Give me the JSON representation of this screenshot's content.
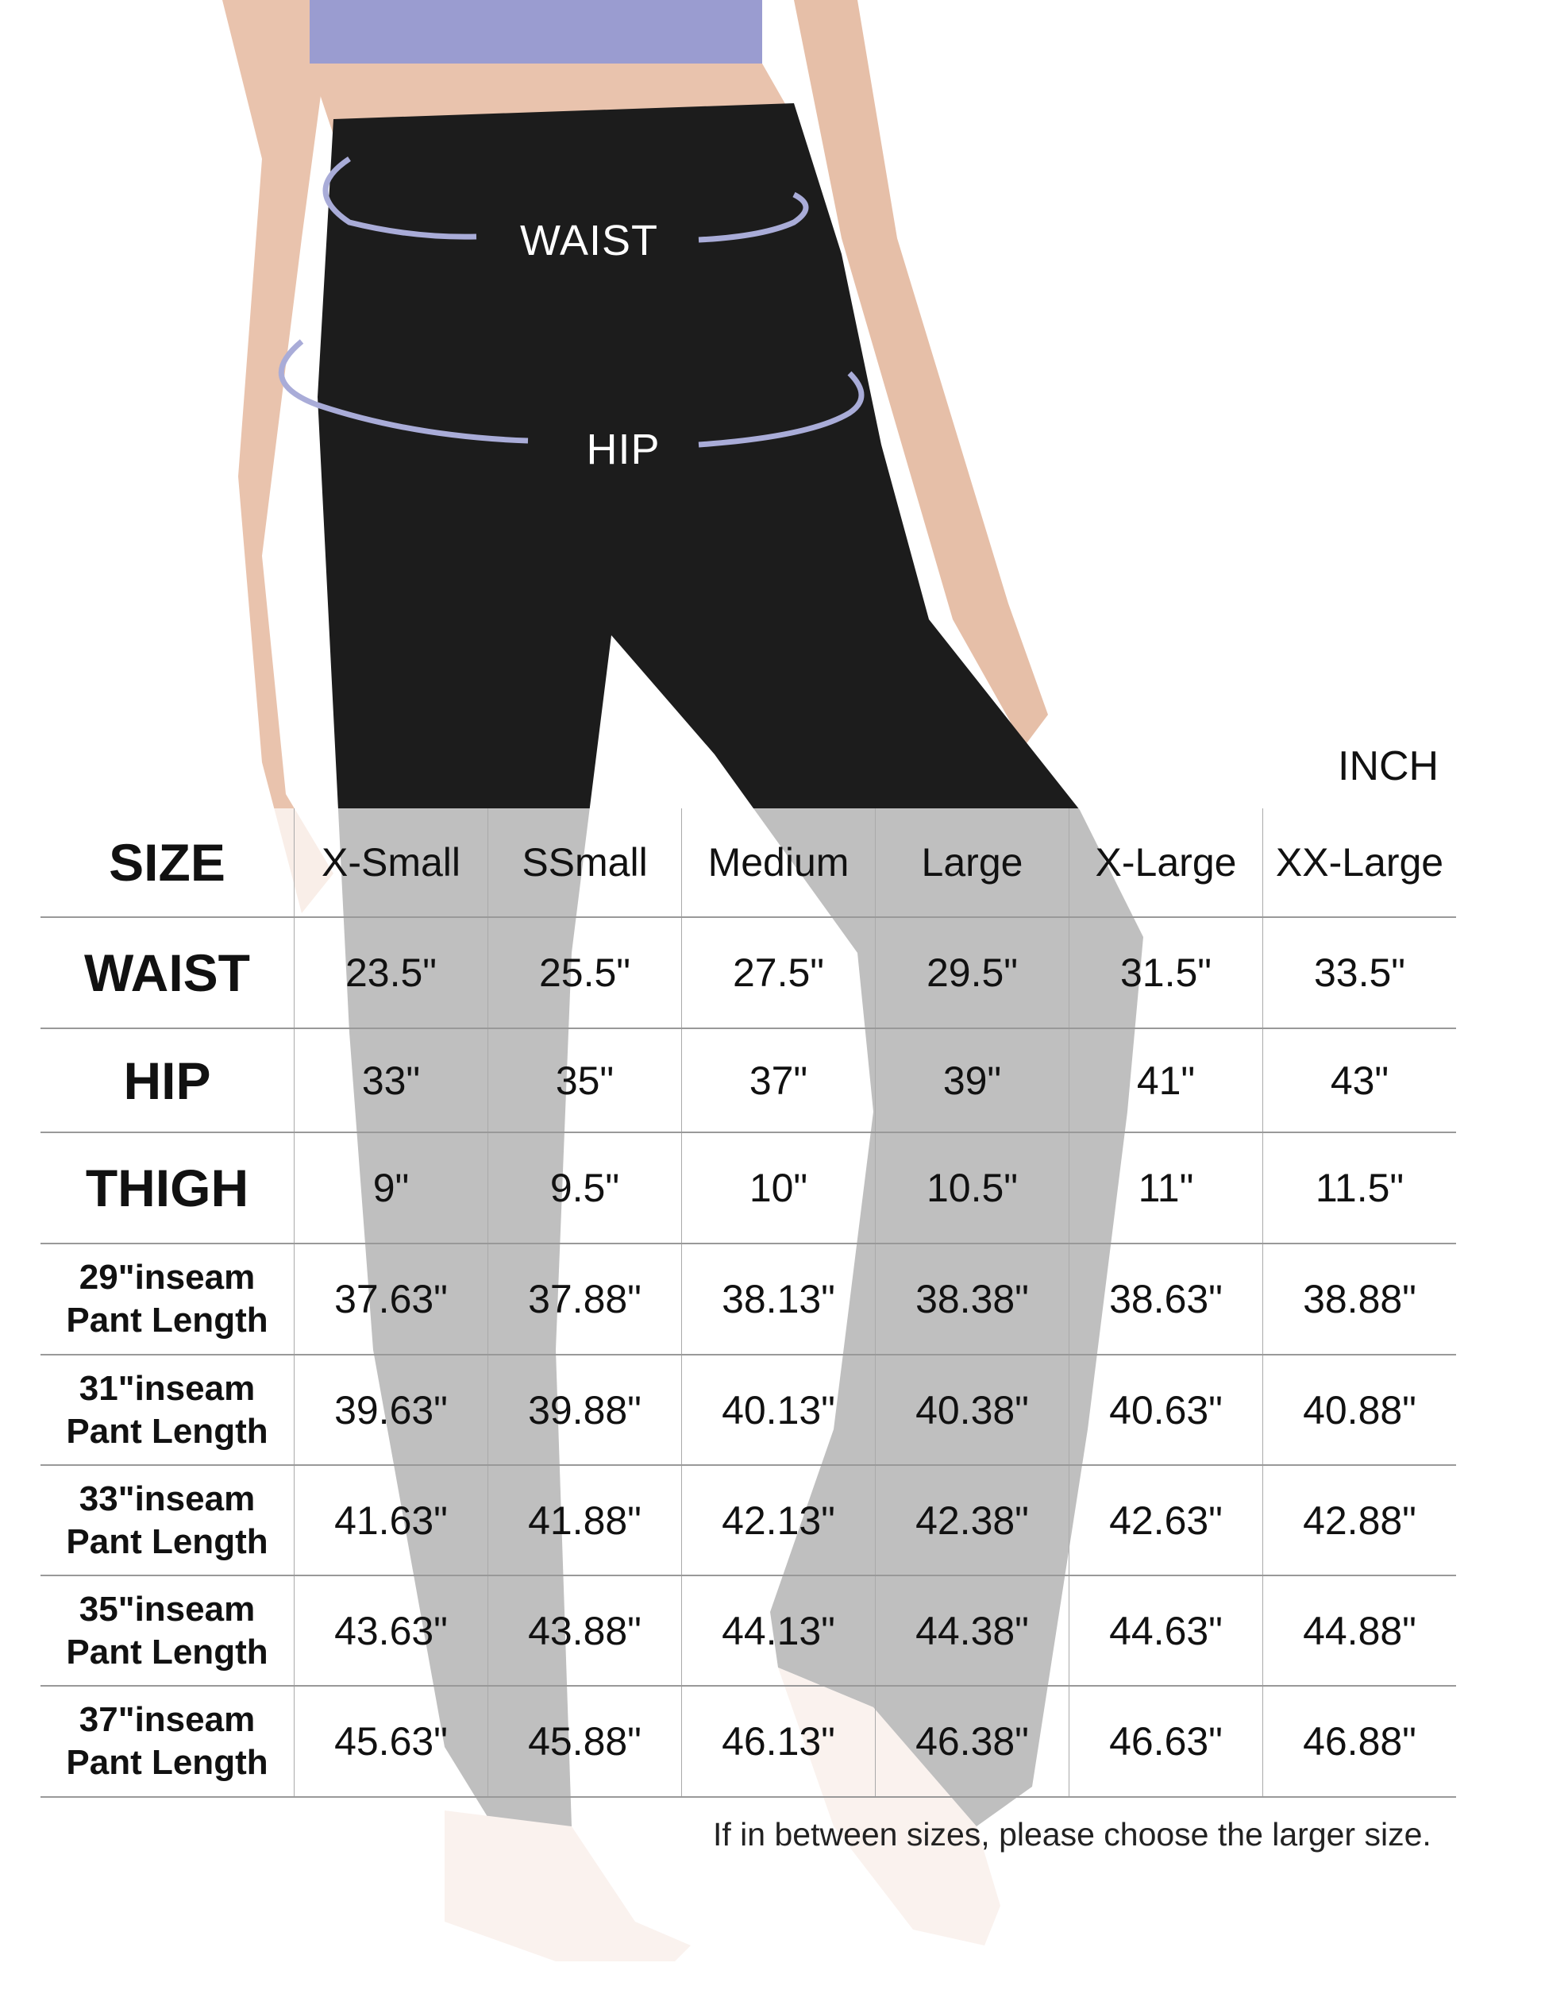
{
  "measure_labels": {
    "waist": "WAIST",
    "hip": "HIP"
  },
  "unit": "INCH",
  "table": {
    "header": {
      "label": "SIZE",
      "sizes": [
        "X-Small",
        "SSmall",
        "Medium",
        "Large",
        "X-Large",
        "XX-Large"
      ]
    },
    "rows": [
      {
        "label": "WAIST",
        "values": [
          "23.5\"",
          "25.5\"",
          "27.5\"",
          "29.5\"",
          "31.5\"",
          "33.5\""
        ]
      },
      {
        "label": "HIP",
        "values": [
          "33\"",
          "35\"",
          "37\"",
          "39\"",
          "41\"",
          "43\""
        ]
      },
      {
        "label": "THIGH",
        "values": [
          "9\"",
          "9.5\"",
          "10\"",
          "10.5\"",
          "11\"",
          "11.5\""
        ]
      },
      {
        "label1": "29\"inseam",
        "label2": "Pant Length",
        "values": [
          "37.63\"",
          "37.88\"",
          "38.13\"",
          "38.38\"",
          "38.63\"",
          "38.88\""
        ]
      },
      {
        "label1": "31\"inseam",
        "label2": "Pant Length",
        "values": [
          "39.63\"",
          "39.88\"",
          "40.13\"",
          "40.38\"",
          "40.63\"",
          "40.88\""
        ]
      },
      {
        "label1": "33\"inseam",
        "label2": "Pant Length",
        "values": [
          "41.63\"",
          "41.88\"",
          "42.13\"",
          "42.38\"",
          "42.63\"",
          "42.88\""
        ]
      },
      {
        "label1": "35\"inseam",
        "label2": "Pant Length",
        "values": [
          "43.63\"",
          "43.88\"",
          "44.13\"",
          "44.38\"",
          "44.63\"",
          "44.88\""
        ]
      },
      {
        "label1": "37\"inseam",
        "label2": "Pant Length",
        "values": [
          "45.63\"",
          "45.88\"",
          "46.13\"",
          "46.38\"",
          "46.63\"",
          "46.88\""
        ]
      }
    ]
  },
  "note": "If in between sizes, please choose the larger size.",
  "colors": {
    "pants": "#1c1c1c",
    "top": "#9a9cd0",
    "measure_line": "#a9acd8",
    "skin": "#e9c3ad"
  }
}
